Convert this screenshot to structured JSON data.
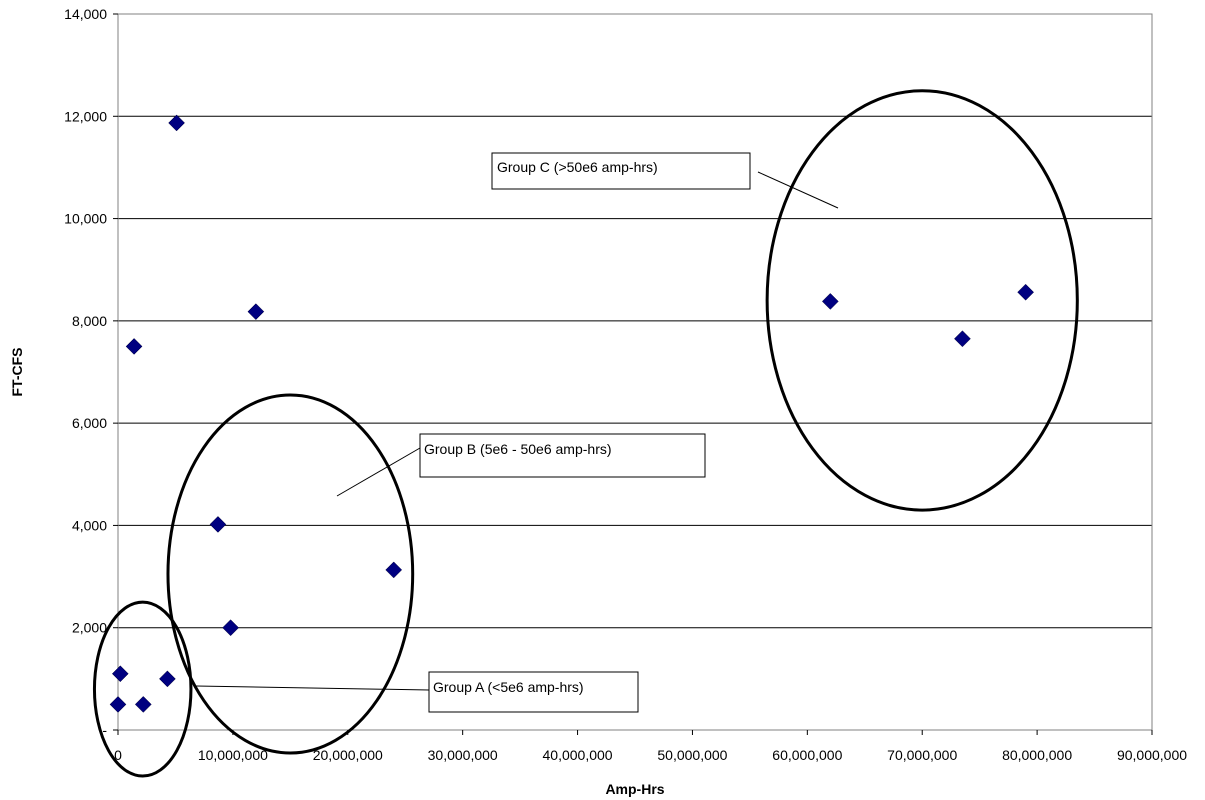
{
  "chart_data": {
    "type": "scatter",
    "xlabel": "Amp-Hrs",
    "ylabel": "FT-CFS",
    "xlim": [
      0,
      90000000
    ],
    "ylim": [
      0,
      14000
    ],
    "x_ticks": [
      0,
      10000000,
      20000000,
      30000000,
      40000000,
      50000000,
      60000000,
      70000000,
      80000000,
      90000000
    ],
    "x_tick_labels": [
      "0",
      "10,000,000",
      "20,000,000",
      "30,000,000",
      "40,000,000",
      "50,000,000",
      "60,000,000",
      "70,000,000",
      "80,000,000",
      "90,000,000"
    ],
    "y_ticks": [
      0,
      2000,
      4000,
      6000,
      8000,
      10000,
      12000,
      14000
    ],
    "y_tick_labels": [
      "-",
      "2,000",
      "4,000",
      "6,000",
      "8,000",
      "10,000",
      "12,000",
      "14,000"
    ],
    "grid": "horizontal",
    "marker_color": "#000080",
    "series": [
      {
        "points": [
          {
            "x": 0,
            "y": 500
          },
          {
            "x": 200000,
            "y": 1100
          },
          {
            "x": 2200000,
            "y": 500
          },
          {
            "x": 4300000,
            "y": 1000
          },
          {
            "x": 1400000,
            "y": 7500
          },
          {
            "x": 5100000,
            "y": 11870
          },
          {
            "x": 12000000,
            "y": 8180
          },
          {
            "x": 8700000,
            "y": 4020
          },
          {
            "x": 9800000,
            "y": 2000
          },
          {
            "x": 24000000,
            "y": 3130
          },
          {
            "x": 62000000,
            "y": 8380
          },
          {
            "x": 73500000,
            "y": 7650
          },
          {
            "x": 79000000,
            "y": 8560
          }
        ]
      }
    ],
    "annotations": [
      {
        "text": "Group A (<5e6 amp-hrs)",
        "ellipse": {
          "cx": 2150000,
          "cy": 800,
          "rx": 4200000,
          "ry": 1700
        }
      },
      {
        "text": "Group B (5e6 - 50e6 amp-hrs)",
        "ellipse": {
          "cx": 15000000,
          "cy": 3050,
          "rx": 10650000,
          "ry": 3500
        }
      },
      {
        "text": "Group C (>50e6 amp-hrs)",
        "ellipse": {
          "cx": 70000000,
          "cy": 8400,
          "rx": 13500000,
          "ry": 4100
        }
      }
    ]
  }
}
